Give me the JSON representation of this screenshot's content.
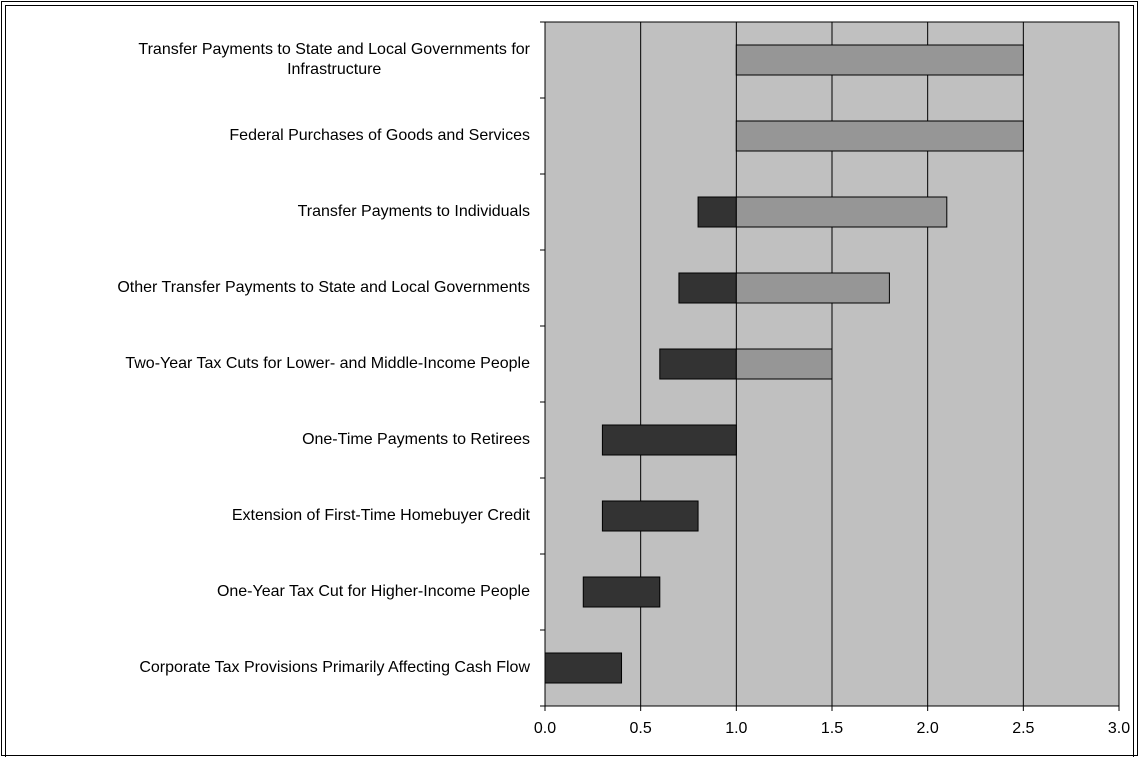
{
  "chart_data": {
    "type": "bar",
    "orientation": "horizontal",
    "stacked_ranges": true,
    "categories": [
      "Transfer Payments to State and Local Governments for Infrastructure",
      "Federal Purchases of Goods and Services",
      "Transfer Payments to Individuals",
      "Other Transfer Payments to State and Local Governments",
      "Two-Year Tax Cuts for Lower- and Middle-Income People",
      "One-Time Payments to Retirees",
      "Extension of First-Time Homebuyer Credit",
      "One-Year Tax Cut for Higher-Income People",
      "Corporate Tax Provisions Primarily Affecting Cash Flow"
    ],
    "category_lines": [
      [
        "Transfer Payments to State and Local Governments for",
        "Infrastructure"
      ],
      [
        "Federal Purchases of Goods and Services"
      ],
      [
        "Transfer Payments to Individuals"
      ],
      [
        "Other Transfer Payments to State and Local Governments"
      ],
      [
        "Two-Year Tax Cuts for Lower- and Middle-Income People"
      ],
      [
        "One-Time Payments to Retirees"
      ],
      [
        "Extension of First-Time Homebuyer Credit"
      ],
      [
        "One-Year Tax Cut for Higher-Income People"
      ],
      [
        "Corporate Tax Provisions Primarily Affecting Cash Flow"
      ]
    ],
    "ranges": [
      {
        "low": 1.0,
        "high": 2.5
      },
      {
        "low": 1.0,
        "high": 2.5
      },
      {
        "low": 0.8,
        "high": 2.1
      },
      {
        "low": 0.7,
        "high": 1.8
      },
      {
        "low": 0.6,
        "high": 1.5
      },
      {
        "low": 0.3,
        "high": 1.0
      },
      {
        "low": 0.3,
        "high": 0.8
      },
      {
        "low": 0.2,
        "high": 0.6
      },
      {
        "low": 0.0,
        "high": 0.4
      }
    ],
    "split_value": 1.0,
    "xlim": [
      0,
      3
    ],
    "xticks": [
      "0.0",
      "0.5",
      "1.0",
      "1.5",
      "2.0",
      "2.5",
      "3.0"
    ],
    "grid": "vertical",
    "colors": {
      "plot_background": "#c0c0c0",
      "below_split": "#333333",
      "above_split": "#969696",
      "gridline": "#000000"
    }
  }
}
